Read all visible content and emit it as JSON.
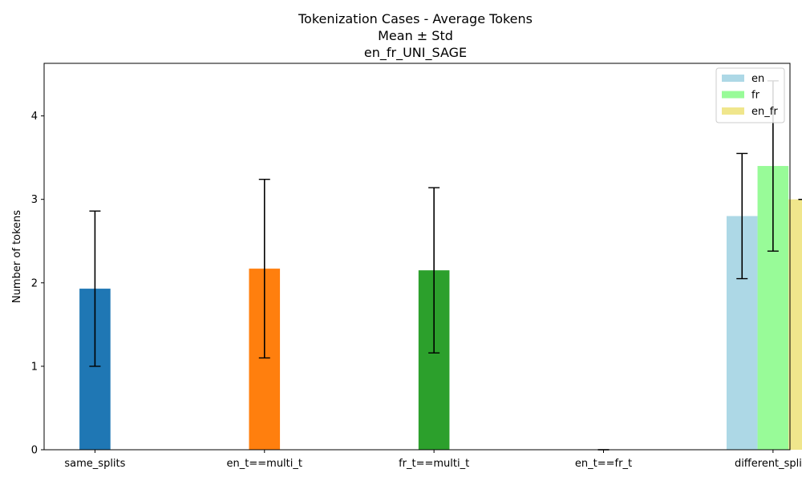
{
  "chart_data": {
    "type": "bar",
    "title": [
      "Tokenization Cases - Average Tokens",
      "Mean ± Std",
      "en_fr_UNI_SAGE"
    ],
    "ylabel": "Number of tokens",
    "xlabel": "",
    "ylim": [
      0,
      4.63
    ],
    "yticks": [
      0,
      1,
      2,
      3,
      4
    ],
    "categories": [
      "same_splits",
      "en_t==multi_t",
      "fr_t==multi_t",
      "en_t==fr_t",
      "different_splits"
    ],
    "bars": [
      {
        "category": "same_splits",
        "mean": 1.93,
        "std": 0.93,
        "color": "#1f77b4"
      },
      {
        "category": "en_t==multi_t",
        "mean": 2.17,
        "std": 1.07,
        "color": "#ff7f0e"
      },
      {
        "category": "fr_t==multi_t",
        "mean": 2.15,
        "std": 0.99,
        "color": "#2ca02c"
      },
      {
        "category": "en_t==fr_t",
        "mean": 0.0,
        "std": 0.0,
        "color": "#d62728"
      },
      {
        "category": "different_splits",
        "series": "en",
        "offset": -1,
        "mean": 2.8,
        "std": 0.75,
        "color": "#add8e6"
      },
      {
        "category": "different_splits",
        "series": "fr",
        "offset": 0,
        "mean": 3.4,
        "std": 1.02,
        "color": "#98fb98"
      },
      {
        "category": "different_splits",
        "series": "en_fr",
        "offset": 1,
        "mean": 3.0,
        "std": 0.0,
        "color": "#f0e68c"
      }
    ],
    "legend": {
      "placement": "top-right",
      "entries": [
        {
          "label": "en",
          "color": "#add8e6"
        },
        {
          "label": "fr",
          "color": "#98fb98"
        },
        {
          "label": "en_fr",
          "color": "#f0e68c"
        }
      ]
    },
    "grid": false
  }
}
